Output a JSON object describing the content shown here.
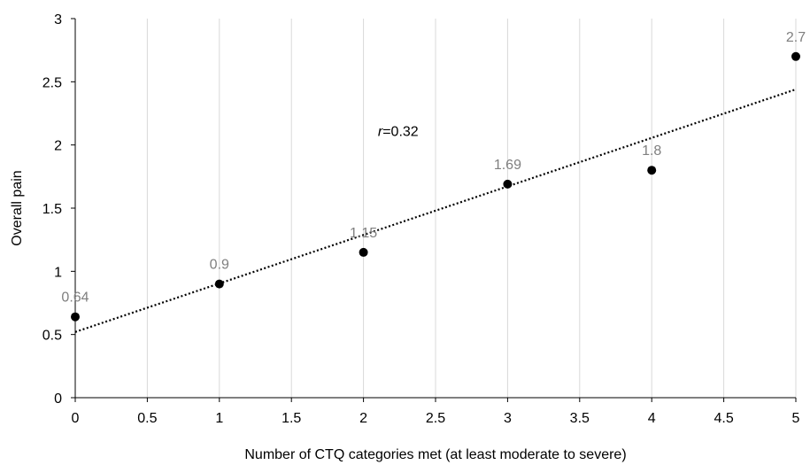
{
  "chart_data": {
    "type": "scatter",
    "xlabel": "Number of CTQ categories met (at least moderate to severe)",
    "ylabel": "Overall pain",
    "xlim": [
      0,
      5
    ],
    "ylim": [
      0,
      3
    ],
    "x_ticks": [
      0,
      0.5,
      1,
      1.5,
      2,
      2.5,
      3,
      3.5,
      4,
      4.5,
      5
    ],
    "y_ticks": [
      0,
      0.5,
      1,
      1.5,
      2,
      2.5,
      3
    ],
    "x_tick_labels": [
      "0",
      "0.5",
      "1",
      "1.5",
      "2",
      "2.5",
      "3",
      "3.5",
      "4",
      "4.5",
      "5"
    ],
    "y_tick_labels": [
      "0",
      "0.5",
      "1",
      "1.5",
      "2",
      "2.5",
      "3"
    ],
    "grid": "vertical",
    "points": [
      {
        "x": 0,
        "y": 0.64,
        "label": "0.64"
      },
      {
        "x": 1,
        "y": 0.9,
        "label": "0.9"
      },
      {
        "x": 2,
        "y": 1.15,
        "label": "1.15"
      },
      {
        "x": 3,
        "y": 1.69,
        "label": "1.69"
      },
      {
        "x": 4,
        "y": 1.8,
        "label": "1.8"
      },
      {
        "x": 5,
        "y": 2.7,
        "label": "2.7"
      }
    ],
    "trendline": {
      "type": "linear",
      "style": "dotted",
      "from": [
        0,
        0.52
      ],
      "to": [
        5,
        2.44
      ]
    },
    "annotation": {
      "italic": "r",
      "text": "=0.32",
      "x": 2.1,
      "y": 2.07
    },
    "colors": {
      "points": "#000000",
      "trendline": "#000000",
      "grid": "#d9d9d9",
      "data_labels": "#7f7f7f"
    }
  }
}
